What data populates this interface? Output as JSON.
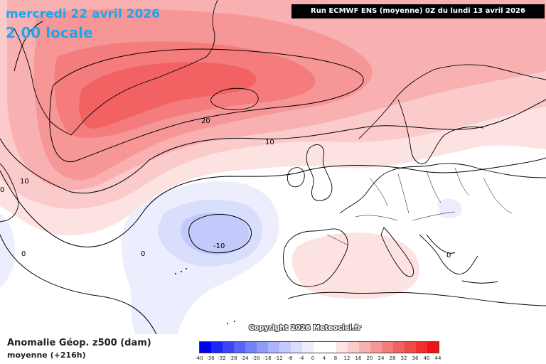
{
  "header": {
    "date": "mercredi 22 avril 2026",
    "time": "2.00 locale",
    "run": "Run ECMWF ENS (moyenne) 0Z du lundi 13 avril 2026"
  },
  "map": {
    "copyright": "Copyright 2026 Meteociel.fr",
    "contour_labels": [
      "20",
      "10",
      "10",
      "0",
      "0",
      "-10",
      "0",
      "0"
    ]
  },
  "legend": {
    "title": "Anomalie Géop. z500 (dam)",
    "subtitle": "moyenne   (+216h)",
    "labels": [
      "-40",
      "-36",
      "-32",
      "-28",
      "-24",
      "-20",
      "-16",
      "-12",
      "-8",
      "-4",
      "0",
      "4",
      "8",
      "12",
      "16",
      "20",
      "24",
      "28",
      "32",
      "36",
      "40",
      "44"
    ],
    "colors": [
      "#0000f0",
      "#1e28f4",
      "#3a46f6",
      "#5664f8",
      "#7482f8",
      "#909cf9",
      "#abb4fa",
      "#c3c9fb",
      "#dadefd",
      "#eceefe",
      "#ffffff",
      "#ffffff",
      "#fde4e4",
      "#fbcaca",
      "#f9b0b0",
      "#f79696",
      "#f57c7c",
      "#f36262",
      "#f14848",
      "#ef2e2e",
      "#ee1414"
    ]
  }
}
